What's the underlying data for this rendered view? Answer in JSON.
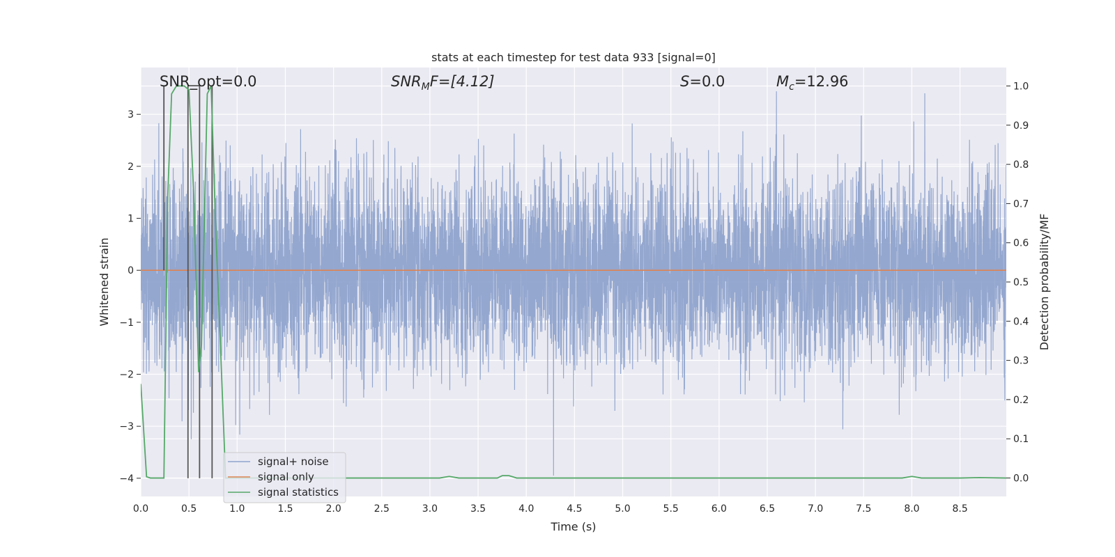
{
  "chart_data": {
    "type": "line",
    "title": "stats at each timestep for test data 933 [signal=0]",
    "xlabel": "Time (s)",
    "ylabel_left": "Whitened strain",
    "ylabel_right": "Detection probability/MF",
    "xlim": [
      0.0,
      8.98
    ],
    "ylim_left": [
      -4.35,
      3.9
    ],
    "ylim_right": [
      -0.047,
      1.047
    ],
    "xticks": [
      0.0,
      0.5,
      1.0,
      1.5,
      2.0,
      2.5,
      3.0,
      3.5,
      4.0,
      4.5,
      5.0,
      5.5,
      6.0,
      6.5,
      7.0,
      7.5,
      8.0,
      8.5
    ],
    "xtick_labels": [
      "0.0",
      "0.5",
      "1.0",
      "1.5",
      "2.0",
      "2.5",
      "3.0",
      "3.5",
      "4.0",
      "4.5",
      "5.0",
      "5.5",
      "6.0",
      "6.5",
      "7.0",
      "7.5",
      "8.0",
      "8.5"
    ],
    "yticks_left": [
      -4,
      -3,
      -2,
      -1,
      0,
      1,
      2,
      3
    ],
    "ytick_labels_left": [
      "−4",
      "−3",
      "−2",
      "−1",
      "0",
      "1",
      "2",
      "3"
    ],
    "yticks_right": [
      0.0,
      0.1,
      0.2,
      0.3,
      0.4,
      0.5,
      0.6,
      0.7,
      0.8,
      0.9,
      1.0
    ],
    "ytick_labels_right": [
      "0.0",
      "0.1",
      "0.2",
      "0.3",
      "0.4",
      "0.5",
      "0.6",
      "0.7",
      "0.8",
      "0.9",
      "1.0"
    ],
    "grid": true,
    "legend_position": "lower-left",
    "annotations": {
      "snr_opt": "SNR_opt=0.0",
      "snr_mf_base": "SNR",
      "snr_mf_sub": "M",
      "snr_mf_rest": "F=[4.12]",
      "s_var": "S",
      "s_val": "=0.0",
      "mc_var": "M",
      "mc_sub": "c",
      "mc_val": "=12.96"
    },
    "series": [
      {
        "name": "signal+ noise",
        "color": "#8fa3cc",
        "axis": "left",
        "kind": "noise",
        "approx_std": 0.9,
        "approx_min": -3.95,
        "approx_max": 3.5
      },
      {
        "name": "signal only",
        "color": "#dd8452",
        "axis": "left",
        "x": [
          0.0,
          8.98
        ],
        "y": [
          0.0,
          0.0
        ]
      },
      {
        "name": "signal statistics",
        "color": "#55a868",
        "axis": "right",
        "x": [
          0.0,
          0.06,
          0.1,
          0.24,
          0.28,
          0.32,
          0.37,
          0.45,
          0.5,
          0.55,
          0.6,
          0.63,
          0.69,
          0.73,
          0.78,
          0.82,
          0.88,
          0.92,
          1.0,
          3.0,
          3.1,
          3.2,
          3.3,
          3.7,
          3.75,
          3.82,
          3.9,
          7.9,
          8.0,
          8.1,
          8.5,
          8.7,
          8.98
        ],
        "y": [
          0.24,
          0.003,
          0.0,
          0.0,
          0.72,
          0.98,
          1.0,
          1.0,
          0.99,
          0.72,
          0.27,
          0.34,
          0.98,
          1.0,
          0.62,
          0.38,
          0.0,
          0.0,
          0.0,
          0.0,
          0.0,
          0.004,
          0.0,
          0.0,
          0.006,
          0.006,
          0.0,
          0.0,
          0.004,
          0.0,
          0.0,
          0.001,
          0.0
        ]
      }
    ],
    "markers": {
      "color": "#555555",
      "x": [
        0.24,
        0.49,
        0.61,
        0.74
      ],
      "y_top_left": [
        3.55,
        3.55,
        3.55,
        3.55
      ],
      "y_bottom_left": [
        -0.0,
        -4.0,
        -4.0,
        -4.0
      ]
    }
  }
}
